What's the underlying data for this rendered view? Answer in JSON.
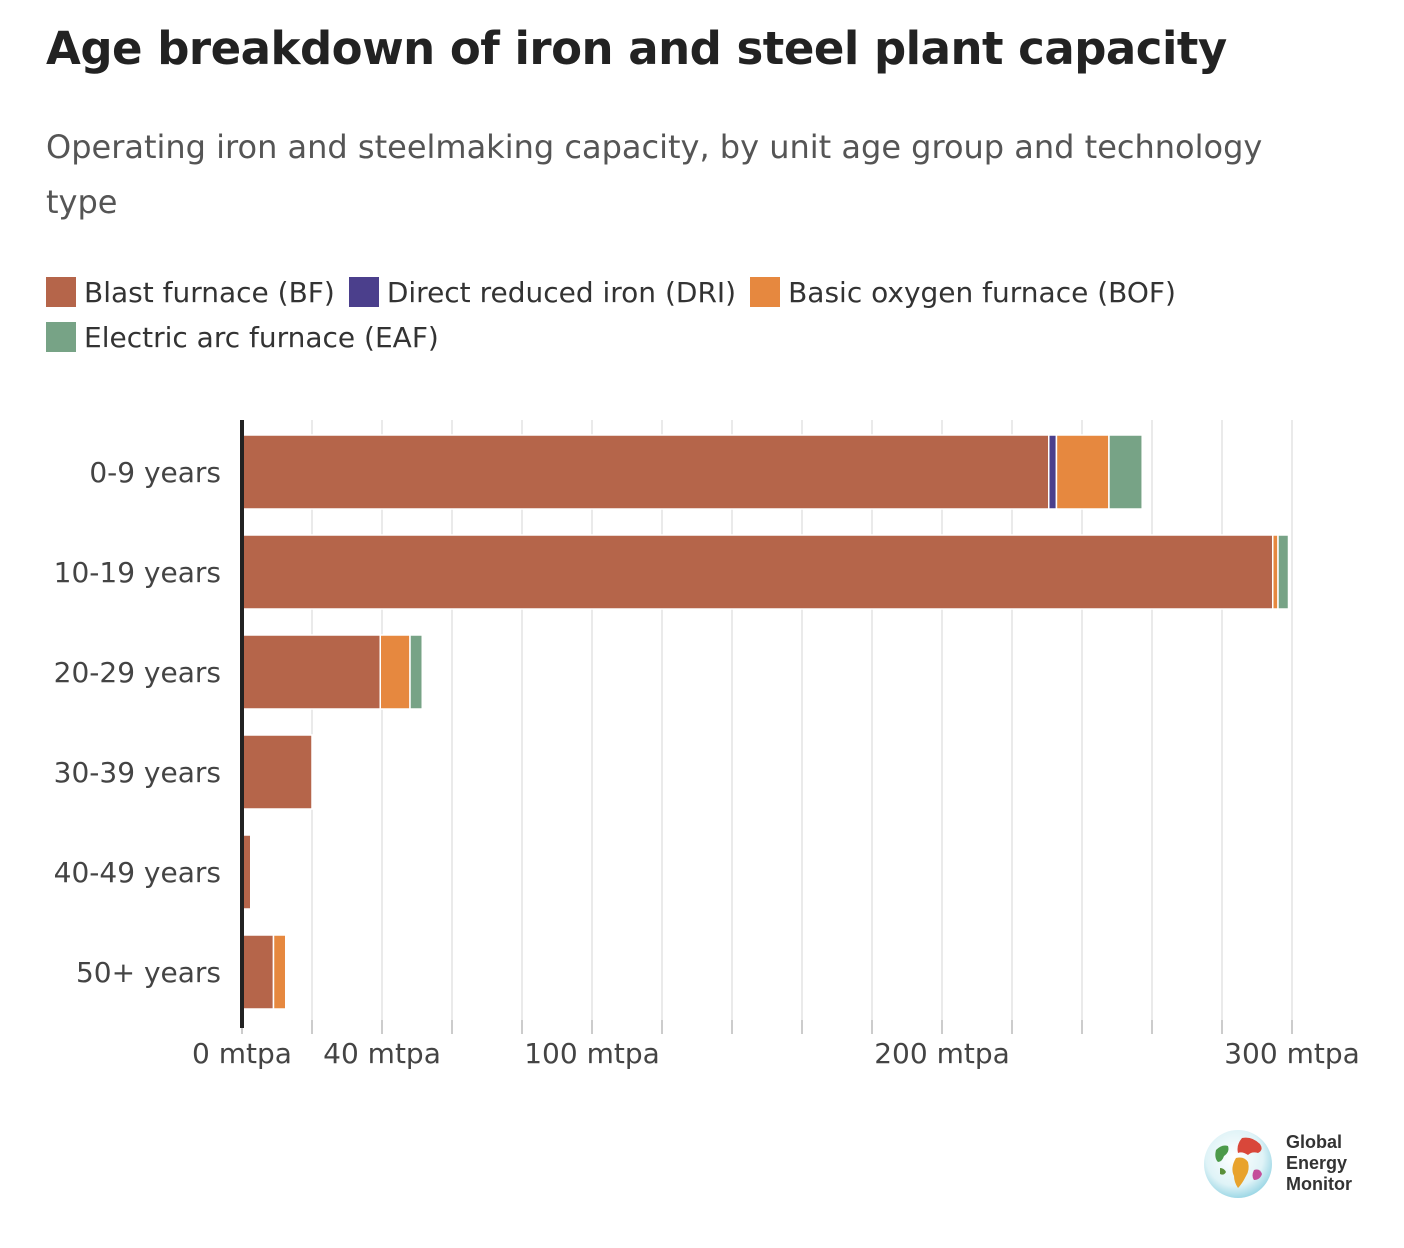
{
  "colors": {
    "bf": "#b5654a",
    "dri": "#4b3f8c",
    "bof": "#e6883f",
    "eaf": "#77a386",
    "grid": "#d6d6d6",
    "axis": "#222222",
    "tick": "#cccccc"
  },
  "legend": [
    {
      "label": "Blast furnace (BF)",
      "color": "#b5654a"
    },
    {
      "label": "Direct reduced iron (DRI)",
      "color": "#4b3f8c"
    },
    {
      "label": "Basic oxygen furnace (BOF)",
      "color": "#e6883f"
    },
    {
      "label": "Electric arc furnace (EAF)",
      "color": "#77a386"
    }
  ],
  "chart_data": {
    "type": "bar",
    "orientation": "horizontal",
    "stacked": true,
    "title": "Age breakdown of iron and steel plant capacity",
    "subtitle": "Operating iron and steelmaking capacity, by unit age group and technology type",
    "categories": [
      "0-9 years",
      "10-19 years",
      "20-29 years",
      "30-39 years",
      "40-49 years",
      "50+ years"
    ],
    "series": [
      {
        "name": "Blast furnace (BF)",
        "values": [
          230.5,
          294.5,
          39.5,
          20,
          2.5,
          9
        ]
      },
      {
        "name": "Direct reduced iron (DRI)",
        "values": [
          2.2,
          0,
          0,
          0,
          0,
          0
        ]
      },
      {
        "name": "Basic oxygen furnace (BOF)",
        "values": [
          15,
          1.5,
          8.5,
          0,
          0,
          3.5
        ]
      },
      {
        "name": "Electric arc furnace (EAF)",
        "values": [
          9.5,
          3,
          3.5,
          0,
          0,
          0
        ]
      }
    ],
    "xlim": [
      0,
      300
    ],
    "x_tick_labels": [
      {
        "value": 0,
        "label": "0 mtpa"
      },
      {
        "value": 40,
        "label": "40 mtpa"
      },
      {
        "value": 100,
        "label": "100 mtpa"
      },
      {
        "value": 200,
        "label": "200 mtpa"
      },
      {
        "value": 300,
        "label": "300 mtpa"
      }
    ],
    "x_gridlines": [
      20,
      40,
      60,
      80,
      100,
      120,
      140,
      160,
      180,
      200,
      220,
      240,
      260,
      280,
      300
    ],
    "x_minor_ticks": [
      20,
      60,
      80,
      120,
      140,
      160,
      180,
      220,
      240,
      260,
      280
    ],
    "grid": true,
    "legend_position": "top-left"
  },
  "logo": {
    "lines": [
      "Global",
      "Energy",
      "Monitor"
    ]
  }
}
